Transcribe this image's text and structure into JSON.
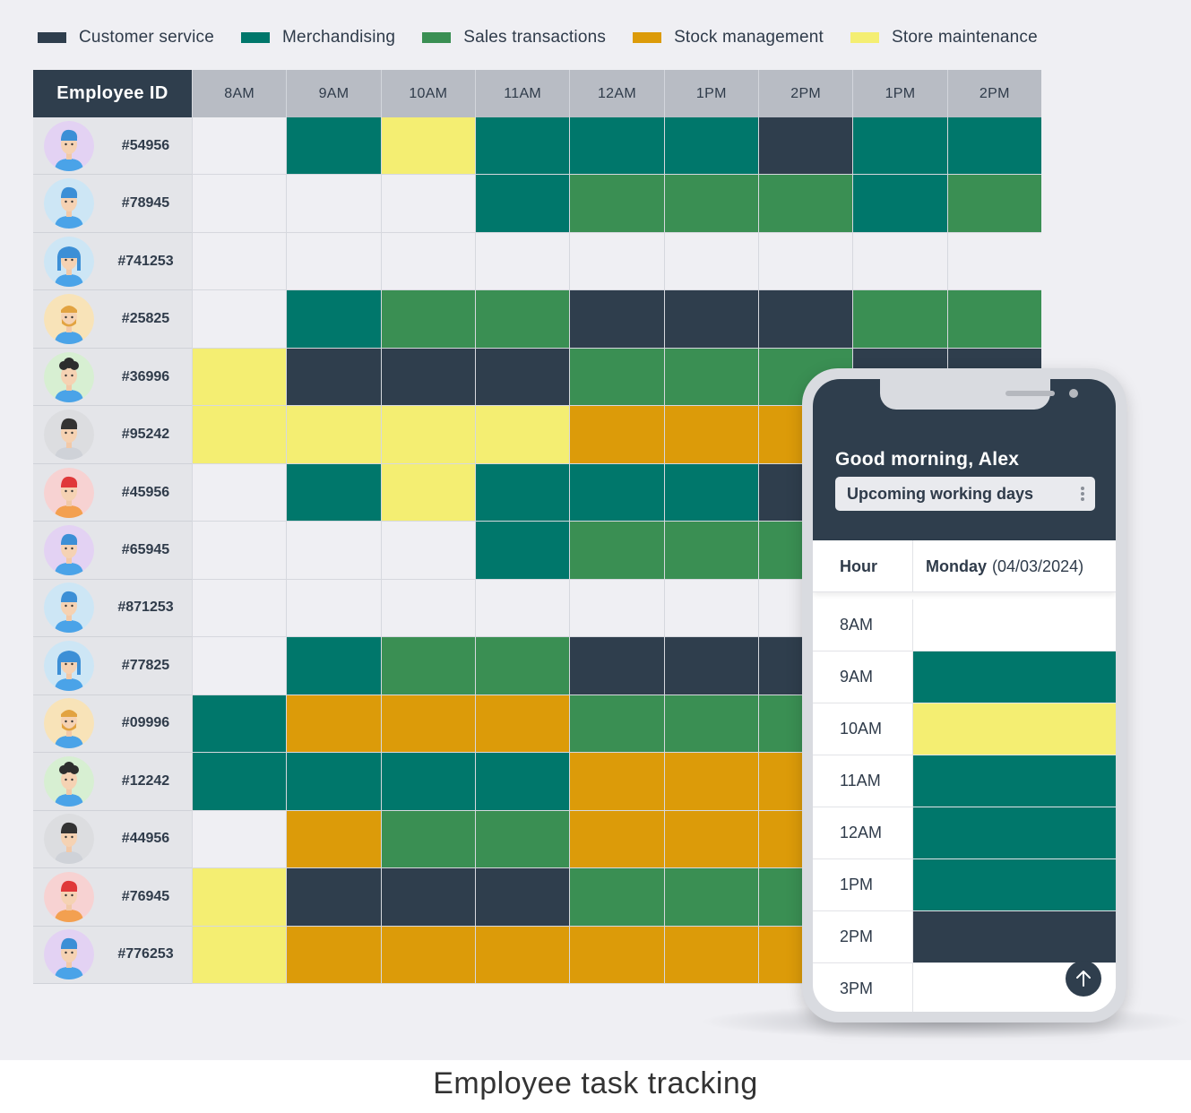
{
  "legend": [
    {
      "label": "Customer service",
      "color": "#2f3e4d"
    },
    {
      "label": "Merchandising",
      "color": "#00776b"
    },
    {
      "label": "Sales transactions",
      "color": "#3a8f53"
    },
    {
      "label": "Stock management",
      "color": "#dc9b09"
    },
    {
      "label": "Store maintenance",
      "color": "#f4ee72"
    }
  ],
  "schedule": {
    "employee_header": "Employee ID",
    "hours": [
      "8AM",
      "9AM",
      "10AM",
      "11AM",
      "12AM",
      "1PM",
      "2PM",
      "1PM",
      "2PM"
    ],
    "employees": [
      {
        "id": "#54956",
        "avatar": "blue-hair-person-avatar",
        "avatar_bg": "#e3d2f3",
        "tasks": [
          null,
          "merch",
          "maint",
          "merch",
          "merch",
          "merch",
          "cust",
          "merch",
          "merch"
        ]
      },
      {
        "id": "#78945",
        "avatar": "blue-hair-person-avatar",
        "avatar_bg": "#cde6f5",
        "tasks": [
          null,
          null,
          null,
          "merch",
          "sales",
          "sales",
          "sales",
          "merch",
          "sales"
        ]
      },
      {
        "id": "#741253",
        "avatar": "blue-hair-woman-avatar",
        "avatar_bg": "#cde6f5",
        "tasks": [
          null,
          null,
          null,
          null,
          null,
          null,
          null,
          null,
          null
        ]
      },
      {
        "id": "#25825",
        "avatar": "bearded-man-avatar",
        "avatar_bg": "#f8e3b8",
        "tasks": [
          null,
          "merch",
          "sales",
          "sales",
          "cust",
          "cust",
          "cust",
          "sales",
          "sales"
        ]
      },
      {
        "id": "#36996",
        "avatar": "curly-hair-man-avatar",
        "avatar_bg": "#d7efd2",
        "tasks": [
          "maint",
          "cust",
          "cust",
          "cust",
          "sales",
          "sales",
          "sales",
          "cust",
          "cust"
        ]
      },
      {
        "id": "#95242",
        "avatar": "dark-hair-man-avatar",
        "avatar_bg": "#dcdde0",
        "tasks": [
          "maint",
          "maint",
          "maint",
          "maint",
          "stock",
          "stock",
          "stock",
          null,
          null
        ]
      },
      {
        "id": "#45956",
        "avatar": "red-hair-person-avatar",
        "avatar_bg": "#f7d2d2",
        "tasks": [
          null,
          "merch",
          "maint",
          "merch",
          "merch",
          "merch",
          "cust",
          null,
          null
        ]
      },
      {
        "id": "#65945",
        "avatar": "blue-hair-person-avatar",
        "avatar_bg": "#e3d2f3",
        "tasks": [
          null,
          null,
          null,
          "merch",
          "sales",
          "sales",
          "sales",
          null,
          null
        ]
      },
      {
        "id": "#871253",
        "avatar": "blue-hair-person-avatar",
        "avatar_bg": "#cde6f5",
        "tasks": [
          null,
          null,
          null,
          null,
          null,
          null,
          null,
          null,
          null
        ]
      },
      {
        "id": "#77825",
        "avatar": "blue-hair-woman-avatar",
        "avatar_bg": "#cde6f5",
        "tasks": [
          null,
          "merch",
          "sales",
          "sales",
          "cust",
          "cust",
          "cust",
          null,
          null
        ]
      },
      {
        "id": "#09996",
        "avatar": "bearded-man-avatar",
        "avatar_bg": "#f8e3b8",
        "tasks": [
          "merch",
          "stock",
          "stock",
          "stock",
          "sales",
          "sales",
          "sales",
          null,
          null
        ]
      },
      {
        "id": "#12242",
        "avatar": "curly-hair-man-avatar",
        "avatar_bg": "#d7efd2",
        "tasks": [
          "merch",
          "merch",
          "merch",
          "merch",
          "stock",
          "stock",
          "stock",
          null,
          null
        ]
      },
      {
        "id": "#44956",
        "avatar": "dark-hair-man-avatar",
        "avatar_bg": "#dcdde0",
        "tasks": [
          null,
          "stock",
          "sales",
          "sales",
          "stock",
          "stock",
          "stock",
          null,
          null
        ]
      },
      {
        "id": "#76945",
        "avatar": "red-hair-person-avatar",
        "avatar_bg": "#f7d2d2",
        "tasks": [
          "maint",
          "cust",
          "cust",
          "cust",
          "sales",
          "sales",
          "sales",
          null,
          null
        ]
      },
      {
        "id": "#776253",
        "avatar": "blue-hair-person-avatar",
        "avatar_bg": "#e3d2f3",
        "tasks": [
          "maint",
          "stock",
          "stock",
          "stock",
          "stock",
          "stock",
          "stock",
          null,
          null
        ]
      }
    ]
  },
  "task_colors": {
    "cust": "#2f3e4d",
    "merch": "#00776b",
    "sales": "#3a8f53",
    "stock": "#dc9b09",
    "maint": "#f4ee72",
    "empty": "#efeff3"
  },
  "phone": {
    "greeting": "Good morning, Alex",
    "dropdown_label": "Upcoming working days",
    "table_hour_header": "Hour",
    "day_name": "Monday",
    "day_date": "(04/03/2024)",
    "rows": [
      {
        "hour": "8AM",
        "task": null
      },
      {
        "hour": "9AM",
        "task": "merch"
      },
      {
        "hour": "10AM",
        "task": "maint"
      },
      {
        "hour": "11AM",
        "task": "merch"
      },
      {
        "hour": "12AM",
        "task": "merch"
      },
      {
        "hour": "1PM",
        "task": "merch"
      },
      {
        "hour": "2PM",
        "task": "cust"
      },
      {
        "hour": "3PM",
        "task": null
      }
    ],
    "scroll_icon": "arrow-up-icon"
  },
  "caption": "Employee task tracking"
}
